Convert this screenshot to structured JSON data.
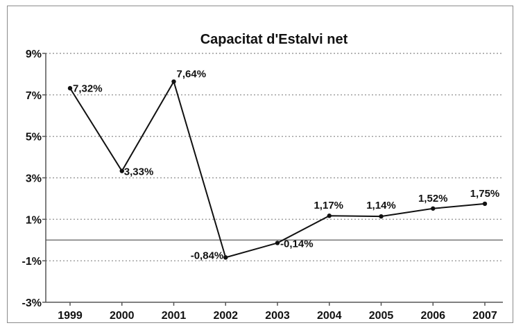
{
  "chart_data": {
    "type": "line",
    "title": "Capacitat d'Estalvi net",
    "categories": [
      "1999",
      "2000",
      "2001",
      "2002",
      "2003",
      "2004",
      "2005",
      "2006",
      "2007"
    ],
    "series": [
      {
        "values": [
          7.32,
          3.33,
          7.64,
          -0.84,
          -0.14,
          1.17,
          1.14,
          1.52,
          1.75
        ],
        "labels": [
          "7,32%",
          "3,33%",
          "7,64%",
          "-0,84%",
          "-0,14%",
          "1,17%",
          "1,14%",
          "1,52%",
          "1,75%"
        ]
      }
    ],
    "y_ticks": [
      {
        "value": 9,
        "label": "9%"
      },
      {
        "value": 7,
        "label": "7%"
      },
      {
        "value": 5,
        "label": "5%"
      },
      {
        "value": 3,
        "label": "3%"
      },
      {
        "value": 1,
        "label": "1%"
      },
      {
        "value": -1,
        "label": "-1%"
      },
      {
        "value": -3,
        "label": "-3%"
      }
    ],
    "ylim": [
      -3,
      9
    ],
    "baseline": 0,
    "grid": "dotted horizontal",
    "colors": {
      "line": "#111111",
      "grid": "#9a9a9a",
      "axis": "#555555"
    }
  }
}
